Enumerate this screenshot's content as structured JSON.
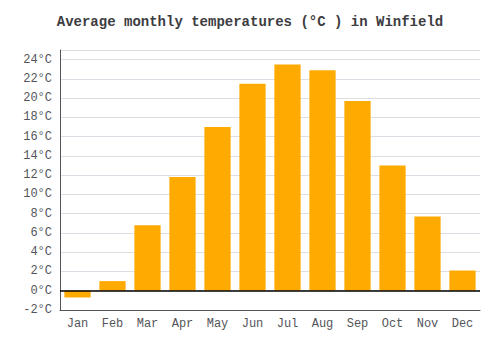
{
  "chart_data": {
    "type": "bar",
    "title": "Average monthly temperatures (°C ) in Winfield",
    "categories": [
      "Jan",
      "Feb",
      "Mar",
      "Apr",
      "May",
      "Jun",
      "Jul",
      "Aug",
      "Sep",
      "Oct",
      "Nov",
      "Dec"
    ],
    "values": [
      -0.7,
      1.0,
      6.8,
      11.8,
      17.0,
      21.5,
      23.5,
      22.9,
      19.7,
      13.0,
      7.7,
      2.1
    ],
    "color": "#FFAA00",
    "ylim": [
      -2,
      25
    ],
    "yticks": [
      {
        "value": -2,
        "label": "-2°C"
      },
      {
        "value": 0,
        "label": "0°C"
      },
      {
        "value": 2,
        "label": "2°C"
      },
      {
        "value": 4,
        "label": "4°C"
      },
      {
        "value": 6,
        "label": "6°C"
      },
      {
        "value": 8,
        "label": "8°C"
      },
      {
        "value": 10,
        "label": "10°C"
      },
      {
        "value": 12,
        "label": "12°C"
      },
      {
        "value": 14,
        "label": "14°C"
      },
      {
        "value": 16,
        "label": "16°C"
      },
      {
        "value": 18,
        "label": "18°C"
      },
      {
        "value": 20,
        "label": "20°C"
      },
      {
        "value": 22,
        "label": "22°C"
      },
      {
        "value": 24,
        "label": "24°C"
      }
    ],
    "grid": true
  }
}
